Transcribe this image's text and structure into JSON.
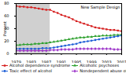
{
  "chart_data": {
    "type": "line",
    "y_label": "Percent",
    "annotation": "New Sample Design",
    "shaded_x": [
      1979,
      1988
    ],
    "x": [
      1979,
      1980,
      1981,
      1982,
      1983,
      1984,
      1985,
      1986,
      1987,
      1988,
      1989,
      1990,
      1991,
      1992,
      1993,
      1994,
      1995,
      1996,
      1997,
      1998,
      1999,
      2000,
      2001,
      2002,
      2003,
      2004,
      2005,
      2006,
      2007
    ],
    "series": [
      {
        "name": "Alcohol dependence syndrome",
        "color": "#d62020",
        "marker": "square",
        "values": [
          76,
          75,
          75,
          74,
          74,
          73,
          72,
          71,
          70,
          70,
          67,
          65,
          62,
          60,
          58,
          55,
          52,
          50,
          48,
          46,
          44,
          42,
          41,
          40,
          39,
          38,
          38,
          37,
          36
        ]
      },
      {
        "name": "Alcoholic psychoses",
        "color": "#2ca02c",
        "marker": "triangle",
        "values": [
          14,
          14,
          15,
          15,
          15,
          16,
          16,
          17,
          17,
          18,
          19,
          20,
          21,
          22,
          23,
          24,
          25,
          26,
          26,
          27,
          27,
          28,
          28,
          29,
          29,
          29,
          30,
          30,
          31
        ]
      },
      {
        "name": "Toxic effect of alcohol",
        "color": "#1f5fd6",
        "marker": "circle",
        "values": [
          8,
          8,
          8,
          8,
          8,
          8,
          8,
          9,
          9,
          9,
          10,
          11,
          12,
          13,
          14,
          15,
          16,
          18,
          19,
          20,
          21,
          22,
          23,
          24,
          25,
          26,
          27,
          28,
          29
        ]
      },
      {
        "name": "Nondependent abuse of alcohol",
        "color": "#9b30c8",
        "marker": "diamond",
        "values": [
          5,
          5,
          5,
          5,
          5,
          5,
          5,
          5,
          5,
          6,
          6,
          6,
          7,
          7,
          7,
          7,
          8,
          8,
          8,
          8,
          8,
          8,
          8,
          8,
          8,
          8,
          7,
          7,
          7
        ]
      }
    ],
    "xlim": [
      1979,
      2007
    ],
    "xticks": [
      1979,
      1983,
      1987,
      1991,
      1995,
      1999,
      2003,
      2007
    ],
    "ylim": [
      0,
      80
    ],
    "yticks": [
      0,
      20,
      40,
      60,
      80
    ],
    "grid": false,
    "legend": "bottom"
  }
}
